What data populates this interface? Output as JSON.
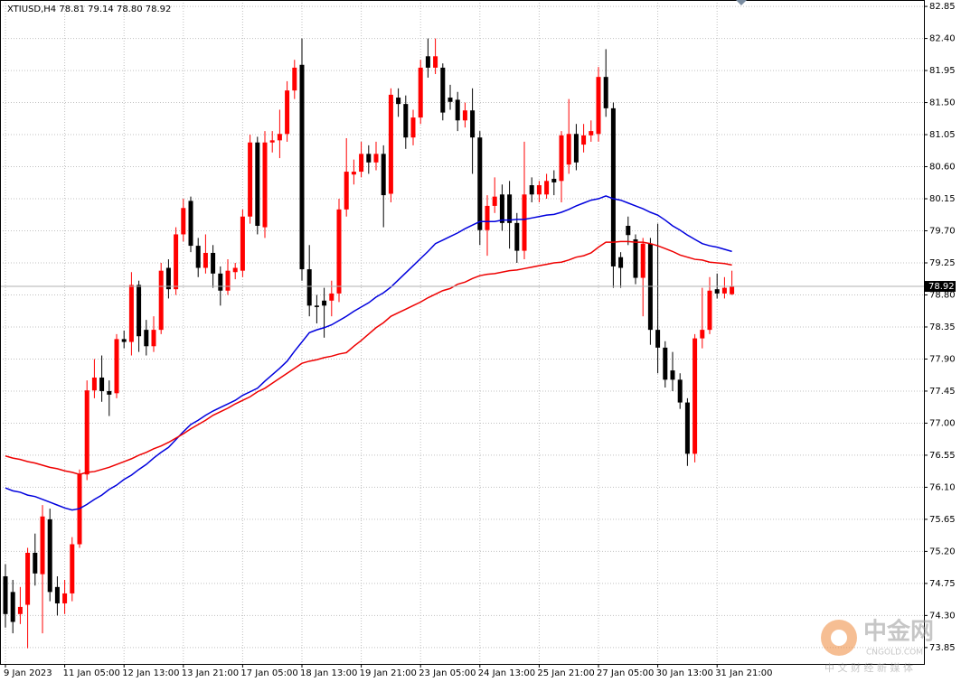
{
  "chart_data": {
    "type": "candlestick",
    "title": "XTIUSD,H4  78.81 79.14 78.80 78.92",
    "categories": [
      "9 Jan 2023",
      null,
      null,
      null,
      null,
      null,
      null,
      null,
      "11 Jan 05:00",
      null,
      null,
      null,
      null,
      null,
      null,
      null,
      "12 Jan 13:00",
      null,
      null,
      null,
      null,
      null,
      null,
      null,
      "13 Jan 21:00",
      null,
      null,
      null,
      null,
      null,
      null,
      null,
      "17 Jan 05:00",
      null,
      null,
      null,
      null,
      null,
      null,
      null,
      "18 Jan 13:00",
      null,
      null,
      null,
      null,
      null,
      null,
      null,
      "19 Jan 21:00",
      null,
      null,
      null,
      null,
      null,
      null,
      null,
      "23 Jan 05:00",
      null,
      null,
      null,
      null,
      null,
      null,
      null,
      "24 Jan 13:00",
      null,
      null,
      null,
      null,
      null,
      null,
      null,
      "25 Jan 21:00",
      null,
      null,
      null,
      null,
      null,
      null,
      null,
      "27 Jan 05:00",
      null,
      null,
      null,
      null,
      null,
      null,
      null,
      "30 Jan 13:00",
      null,
      null,
      null,
      null,
      null,
      null,
      null,
      "31 Jan 21:00",
      null,
      null
    ],
    "open": [
      74.85,
      74.63,
      74.32,
      74.45,
      75.18,
      74.88,
      75.65,
      74.7,
      74.47,
      74.61,
      75.3,
      76.28,
      77.46,
      77.64,
      77.45,
      77.42,
      78.18,
      78.14,
      78.94,
      78.31,
      78.08,
      78.31,
      79.18,
      78.88,
      79.65,
      80.12,
      79.49,
      79.18,
      79.39,
      79.1,
      78.86,
      79.12,
      79.14,
      79.9,
      80.94,
      79.75,
      80.94,
      80.97,
      81.06,
      81.67,
      82.03,
      79.16,
      78.65,
      78.72,
      78.72,
      78.82,
      80.0,
      80.49,
      80.53,
      80.78,
      80.66,
      80.78,
      80.22,
      81.57,
      81.48,
      81.01,
      81.29,
      82.15,
      81.99,
      81.99,
      81.57,
      81.54,
      81.25,
      81.39,
      81.01,
      79.71,
      80.05,
      80.21,
      80.21,
      79.81,
      79.42,
      80.34,
      80.21,
      80.21,
      80.43,
      80.4,
      80.63,
      81.06,
      80.91,
      81.04,
      81.06,
      81.86,
      81.42,
      79.33,
      79.77,
      79.58,
      79.04,
      79.52,
      78.31,
      78.06,
      77.74,
      77.61,
      77.29,
      76.57,
      78.19,
      78.31,
      78.88,
      78.82,
      78.81
    ],
    "high": [
      75.02,
      74.8,
      74.7,
      75.25,
      75.45,
      75.85,
      75.8,
      74.85,
      74.8,
      75.4,
      76.35,
      77.6,
      77.9,
      77.95,
      77.6,
      78.25,
      78.3,
      79.12,
      79.0,
      78.45,
      78.5,
      79.25,
      79.3,
      79.75,
      80.15,
      80.18,
      79.6,
      79.65,
      79.5,
      79.2,
      79.3,
      79.25,
      80.0,
      81.05,
      81.02,
      81.1,
      81.1,
      81.4,
      81.8,
      82.1,
      82.4,
      79.5,
      78.8,
      78.9,
      79.0,
      80.15,
      81.0,
      80.7,
      80.95,
      80.9,
      80.95,
      80.9,
      81.7,
      81.7,
      81.6,
      81.4,
      82.1,
      82.4,
      82.4,
      82.05,
      81.75,
      81.65,
      81.5,
      81.7,
      81.1,
      80.2,
      80.45,
      80.35,
      80.4,
      79.95,
      80.95,
      80.45,
      80.4,
      80.5,
      80.55,
      81.1,
      81.55,
      81.2,
      81.2,
      81.25,
      82.0,
      82.25,
      81.5,
      79.4,
      79.9,
      79.65,
      79.6,
      79.6,
      79.8,
      78.15,
      78.0,
      77.7,
      77.35,
      78.25,
      78.9,
      79.05,
      79.1,
      79.05,
      79.14
    ],
    "low": [
      74.13,
      74.05,
      74.18,
      73.84,
      74.72,
      74.05,
      74.5,
      74.3,
      74.32,
      74.5,
      75.25,
      76.2,
      77.35,
      77.3,
      77.1,
      77.35,
      78.05,
      77.95,
      78.0,
      77.95,
      78.0,
      78.25,
      78.75,
      78.8,
      79.55,
      79.4,
      79.05,
      79.1,
      78.9,
      78.65,
      78.8,
      79.02,
      79.05,
      79.8,
      79.65,
      79.6,
      80.8,
      80.72,
      80.95,
      81.55,
      79.0,
      78.5,
      78.4,
      78.2,
      78.5,
      78.7,
      79.9,
      80.35,
      80.45,
      80.5,
      80.55,
      79.75,
      80.1,
      81.3,
      80.85,
      80.9,
      81.2,
      81.85,
      81.9,
      81.25,
      81.4,
      81.1,
      81.15,
      80.5,
      79.5,
      79.35,
      79.95,
      79.7,
      79.45,
      79.25,
      79.3,
      80.1,
      80.1,
      80.15,
      80.2,
      80.1,
      80.5,
      80.55,
      80.8,
      80.95,
      80.95,
      81.3,
      78.9,
      78.9,
      79.5,
      78.95,
      78.5,
      78.1,
      77.7,
      77.5,
      77.45,
      77.2,
      76.4,
      76.45,
      78.05,
      78.25,
      78.75,
      78.75,
      78.8
    ],
    "close": [
      74.32,
      74.21,
      74.42,
      75.18,
      74.89,
      75.69,
      74.63,
      74.47,
      74.61,
      75.3,
      76.28,
      77.46,
      77.64,
      77.45,
      77.4,
      78.18,
      78.14,
      78.94,
      78.22,
      78.08,
      78.31,
      79.14,
      78.88,
      79.65,
      80.02,
      79.49,
      79.18,
      79.39,
      79.1,
      78.86,
      79.14,
      79.18,
      79.9,
      80.94,
      79.77,
      80.94,
      80.97,
      81.06,
      81.67,
      81.99,
      79.16,
      78.65,
      78.63,
      78.65,
      78.82,
      80.0,
      80.53,
      80.53,
      80.78,
      80.66,
      80.78,
      80.2,
      81.61,
      81.48,
      81.01,
      81.29,
      81.99,
      81.99,
      82.15,
      81.36,
      81.51,
      81.25,
      81.39,
      81.01,
      79.71,
      80.05,
      80.18,
      79.81,
      79.81,
      79.42,
      80.21,
      80.21,
      80.34,
      80.4,
      80.38,
      81.04,
      81.06,
      80.66,
      81.04,
      81.1,
      81.86,
      81.42,
      79.2,
      79.18,
      79.64,
      79.04,
      79.52,
      78.31,
      78.06,
      77.61,
      77.61,
      77.29,
      76.57,
      78.19,
      78.31,
      78.86,
      78.82,
      78.9,
      78.92
    ],
    "up_color": "#ff0000",
    "down_color": "#000000",
    "lines": [
      {
        "color": "#0000dd",
        "values": [
          76.09,
          76.05,
          76.03,
          75.99,
          75.97,
          75.93,
          75.89,
          75.85,
          75.81,
          75.78,
          75.8,
          75.86,
          75.93,
          75.99,
          76.07,
          76.13,
          76.21,
          76.27,
          76.35,
          76.42,
          76.51,
          76.59,
          76.66,
          76.77,
          76.88,
          76.98,
          77.04,
          77.11,
          77.17,
          77.22,
          77.27,
          77.32,
          77.39,
          77.44,
          77.49,
          77.59,
          77.68,
          77.77,
          77.87,
          78.01,
          78.14,
          78.27,
          78.31,
          78.34,
          78.38,
          78.44,
          78.5,
          78.57,
          78.63,
          78.69,
          78.77,
          78.83,
          78.91,
          79.01,
          79.11,
          79.21,
          79.31,
          79.41,
          79.52,
          79.57,
          79.62,
          79.67,
          79.73,
          79.78,
          79.83,
          79.83,
          79.83,
          79.85,
          79.85,
          79.86,
          79.86,
          79.88,
          79.9,
          79.92,
          79.93,
          79.96,
          80.0,
          80.05,
          80.09,
          80.13,
          80.15,
          80.19,
          80.15,
          80.13,
          80.09,
          80.05,
          80.01,
          79.96,
          79.92,
          79.85,
          79.77,
          79.71,
          79.64,
          79.58,
          79.52,
          79.49,
          79.47,
          79.44,
          79.41
        ]
      },
      {
        "color": "#ee0000",
        "values": [
          76.54,
          76.51,
          76.49,
          76.46,
          76.44,
          76.41,
          76.38,
          76.36,
          76.33,
          76.31,
          76.28,
          76.31,
          76.32,
          76.35,
          76.38,
          76.42,
          76.46,
          76.5,
          76.55,
          76.59,
          76.64,
          76.68,
          76.73,
          76.79,
          76.85,
          76.92,
          76.98,
          77.04,
          77.11,
          77.16,
          77.21,
          77.27,
          77.32,
          77.37,
          77.44,
          77.49,
          77.56,
          77.63,
          77.7,
          77.77,
          77.84,
          77.87,
          77.89,
          77.92,
          77.94,
          77.97,
          77.99,
          78.08,
          78.16,
          78.25,
          78.34,
          78.41,
          78.5,
          78.55,
          78.6,
          78.65,
          78.7,
          78.76,
          78.81,
          78.86,
          78.89,
          78.95,
          78.98,
          79.03,
          79.07,
          79.09,
          79.1,
          79.12,
          79.14,
          79.15,
          79.17,
          79.19,
          79.21,
          79.23,
          79.25,
          79.26,
          79.29,
          79.33,
          79.35,
          79.39,
          79.47,
          79.54,
          79.54,
          79.55,
          79.55,
          79.54,
          79.54,
          79.52,
          79.49,
          79.45,
          79.41,
          79.36,
          79.33,
          79.3,
          79.29,
          79.26,
          79.25,
          79.24,
          79.22
        ]
      }
    ],
    "ylim": [
      73.62,
      82.94
    ],
    "yticks": [
      82.85,
      {
        "value": 82.4,
        "label": "82.40"
      },
      81.95,
      {
        "value": 81.5,
        "label": "81.50"
      },
      81.05,
      {
        "value": 80.6,
        "label": "80.60"
      },
      80.15,
      {
        "value": 79.7,
        "label": "79.70"
      },
      79.25,
      {
        "value": 78.8,
        "label": "78.80"
      },
      78.35,
      {
        "value": 77.9,
        "label": "77.90"
      },
      77.45,
      {
        "value": 77,
        "label": "77.00"
      },
      76.55,
      {
        "value": 76.1,
        "label": "76.10"
      },
      75.65,
      {
        "value": 75.2,
        "label": "75.20"
      },
      74.75,
      {
        "value": 74.3,
        "label": "74.30"
      },
      73.85
    ],
    "grid": true,
    "watermark": {
      "brand": "中金网",
      "site": "CNGOLD.COM",
      "tagline": "中 文 财 经 新 媒 体"
    }
  }
}
